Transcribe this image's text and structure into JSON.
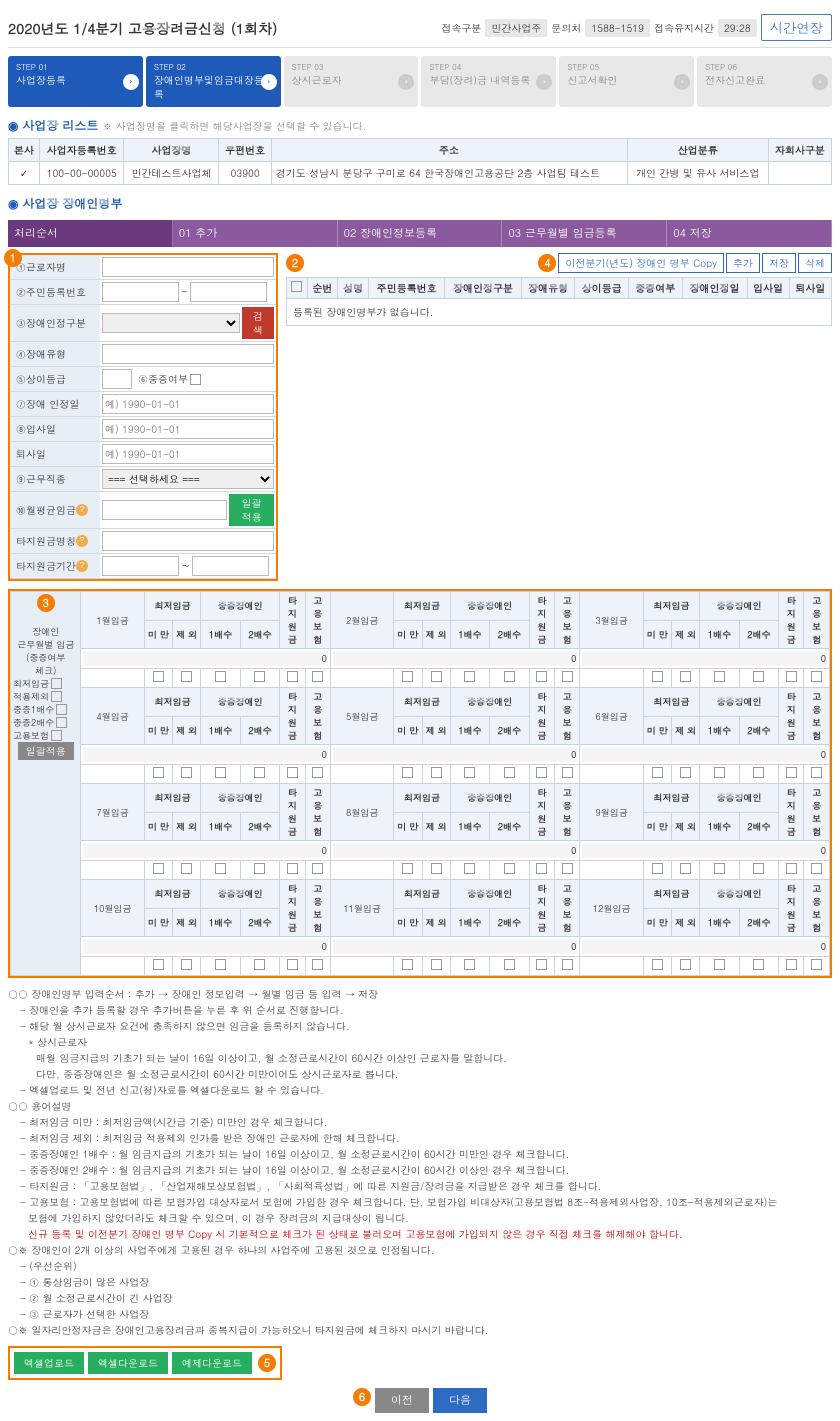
{
  "header": {
    "title": "2020년도 1/4분기 고용장려금신청 (1회차)",
    "access_type_label": "접속구분",
    "access_type": "민간사업주",
    "inquiry_label": "문의처",
    "inquiry": "1588-1519",
    "session_label": "접속유지시간",
    "session": "29:28",
    "extend": "시간연장"
  },
  "steps": [
    {
      "id": "STEP 01",
      "label": "사업장등록"
    },
    {
      "id": "STEP 02",
      "label": "장애인명부및임금대장등록"
    },
    {
      "id": "STEP 03",
      "label": "상시근로자"
    },
    {
      "id": "STEP 04",
      "label": "부담(장려)금 내역등록"
    },
    {
      "id": "STEP 05",
      "label": "신고서확인"
    },
    {
      "id": "STEP 06",
      "label": "전자신고완료"
    }
  ],
  "biz_list": {
    "title": "사업장 리스트",
    "sub": "※ 사업장명을 클릭하면 해당사업장을 선택할 수 있습니다.",
    "cols": [
      "본사",
      "사업자등록번호",
      "사업장명",
      "우편번호",
      "주소",
      "산업분류",
      "자회사구분"
    ],
    "row": {
      "regno": "100-00-00005",
      "name": "민간테스트사업체",
      "zip": "03900",
      "addr": "경기도 성남시 분당구 구미로 64 한국장애인고용공단 2층 사업팀 테스트",
      "industry": "개인 간병 및 유사 서비스업",
      "sub": ""
    }
  },
  "roster_title": "사업장 장애인명부",
  "tabs": [
    "처리순서",
    "01  추가",
    "02  장애인정보등록",
    "03  근무월별 임금등록",
    "04  저장"
  ],
  "form": {
    "labels": {
      "name": "①근로자명",
      "jumin": "②주민등록번호",
      "cert": "③장애인정구분",
      "type": "④장애유형",
      "grade": "⑤상이등급",
      "severe": "⑥중증여부",
      "certdate": "⑦장애 인정일",
      "hire": "⑧입사일",
      "leave": "퇴사일",
      "job": "⑨근무직종",
      "avgwage": "⑩월평균임금",
      "other_name": "타지원금명칭",
      "other_period": "타지원금기간"
    },
    "search": "검색",
    "apply": "일괄적용",
    "ph_date": "예) 1990-01-01",
    "select_ph": "=== 선택하세요 ==="
  },
  "right": {
    "copy": "이전분기(년도) 장애인 명부 Copy",
    "add": "추가",
    "save": "저장",
    "del": "삭제",
    "cols": [
      "",
      "순번",
      "성명",
      "주민등록번호",
      "장애인정구분",
      "장애유형",
      "상이등급",
      "중증여부",
      "장애인정일",
      "입사일",
      "퇴사일"
    ],
    "empty": "등록된 장애인명부가 없습니다."
  },
  "wage": {
    "side_title": "장애인\n근무월별 임금\n(중증여부\n체크)",
    "side_items": [
      "최저임금",
      "적용제외",
      "중증1배수",
      "중증2배수",
      "고용보험"
    ],
    "apply_all": "일괄적용",
    "months": [
      "1월임금",
      "2월임금",
      "3월임금",
      "4월임금",
      "5월임금",
      "6월임금",
      "7월임금",
      "8월임금",
      "9월임금",
      "10월임금",
      "11월임금",
      "12월임금"
    ],
    "subcols": {
      "min": "최저임금",
      "sev": "중증장애인",
      "ta": "타\n지\n원\n금",
      "go": "고\n용\n보\n험",
      "miman": "미\n만",
      "jewoe": "제\n외",
      "b1": "1배수",
      "b2": "2배수"
    },
    "zero": "0"
  },
  "desc": {
    "l1": "○○ 장애인명부 입력순서 : 추가 → 장애인 정보입력 → 월별 임금 등 입력 → 저장",
    "l2": "- 장애인을 추가 등록할 경우 추가버튼을 누른 후 위 순서로 진행합니다.",
    "l3": "- 해당 월 상시근로자 요건에 충족하지 않으면 임금을 등록하지 않습니다.",
    "l4": "* 상시근로자",
    "l5": "매월 임금지급의 기초가 되는 날이 16일 이상이고, 월 소정근로시간이 60시간 이상인 근로자를 말합니다.",
    "l6": "다만, 중증장애인은 월 소정근로시간이 60시간 미만이어도 상시근로자로 봅니다.",
    "l7": "- 엑셀업로드 및 전년 신고(청)자료를 엑셀다운로드 할 수 있습니다.",
    "l8": "○○ 용어설명",
    "l9": "- 최저임금 미만 : 최저임금액(시간급 기준) 미만인 경우 체크합니다.",
    "l10": "- 최저임금 제외 : 최저임금 적용제외 인가를 받은 장애인 근로자에 한해 체크합니다.",
    "l11": "- 중증장애인 1배수 : 월 임금지급의 기초가 되는 날이 16일 이상이고, 월 소정근로시간이 60시간 미만인 경우 체크합니다.",
    "l12": "- 중증장애인 2배수 : 월 임금지급의 기초가 되는 날이 16일 이상이고, 월 소정근로시간이 60시간 이상인 경우 체크합니다.",
    "l13": "- 타지원금 : 「고용보험법」, 「산업재해보상보험법」, 「사회적육성법」에 따른 지원금/장려금을 지급받은 경우 체크를 합니다.",
    "l14": "- 고용보험 : 고용보험법에 따른 보험가입 대상자로서 보험에 가입한 경우 체크합니다. 단, 보험가입 비대상자(고용보험법 8조-적용제외사업장, 10조-적용제외근로자)는",
    "l15": "보험에 가입하지 않았더라도 체크할 수 있으며, 이 경우 장려금의 지급대상이 됩니다.",
    "l16": "신규 등록 및 이전분기 장애인 명부 Copy 시 기본적으로 체크가 된 상태로 불러오며 고용보험에 가입되지 않은 경우 직접 체크를 해제해야 합니다.",
    "l17": "○※ 장애인이 2개 이상의 사업주에게 고용된 경우 하나의 사업주에 고용된 것으로 인정됩니다.",
    "l18": "- (우선순위)",
    "l19": "- ① 통상임금이 많은 사업장",
    "l20": "- ② 월 소정근로시간이 긴 사업장",
    "l21": "- ③ 근로자가 선택한 사업장",
    "l22": "○※ 일자리안정자금은 장애인고용장려금과 중복지급이 가능하오니 타지원금에 체크하지 마시기 바랍니다."
  },
  "bottom": {
    "upload": "엑셀업로드",
    "download": "엑셀다운로드",
    "sample": "예제다운로드"
  },
  "nav": {
    "prev": "이전",
    "next": "다음"
  }
}
